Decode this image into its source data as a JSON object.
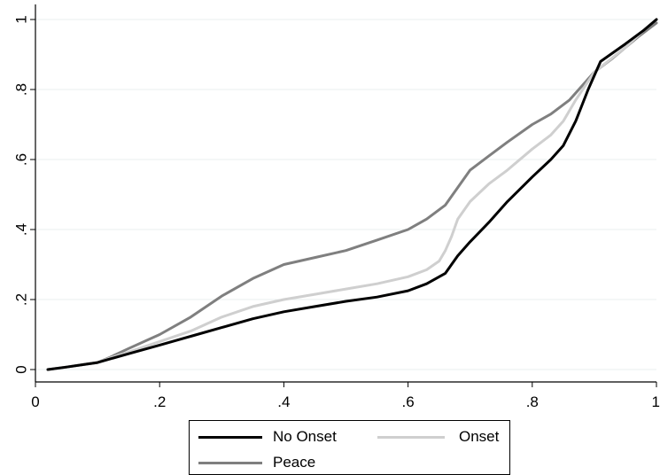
{
  "chart_data": {
    "type": "line",
    "title": "",
    "xlabel": "",
    "ylabel": "",
    "xlim": [
      0,
      1
    ],
    "ylim": [
      0,
      1
    ],
    "grid": true,
    "legend_position": "bottom",
    "x_ticks": [
      {
        "value": 0,
        "label": "0"
      },
      {
        "value": 0.2,
        "label": ".2"
      },
      {
        "value": 0.4,
        "label": ".4"
      },
      {
        "value": 0.6,
        "label": ".6"
      },
      {
        "value": 0.8,
        "label": ".8"
      },
      {
        "value": 1,
        "label": "1"
      }
    ],
    "y_ticks": [
      {
        "value": 0,
        "label": "0"
      },
      {
        "value": 0.2,
        "label": ".2"
      },
      {
        "value": 0.4,
        "label": ".4"
      },
      {
        "value": 0.6,
        "label": ".6"
      },
      {
        "value": 0.8,
        "label": ".8"
      },
      {
        "value": 1,
        "label": "1"
      }
    ],
    "series": [
      {
        "name": "No Onset",
        "color": "#000000",
        "x": [
          0.02,
          0.05,
          0.08,
          0.1,
          0.12,
          0.15,
          0.2,
          0.25,
          0.3,
          0.35,
          0.4,
          0.45,
          0.5,
          0.55,
          0.6,
          0.63,
          0.66,
          0.68,
          0.7,
          0.73,
          0.76,
          0.8,
          0.83,
          0.85,
          0.87,
          0.89,
          0.91,
          0.95,
          0.98,
          1.0
        ],
        "y": [
          0.0,
          0.007,
          0.015,
          0.02,
          0.03,
          0.045,
          0.07,
          0.095,
          0.12,
          0.145,
          0.165,
          0.18,
          0.195,
          0.207,
          0.225,
          0.245,
          0.275,
          0.325,
          0.365,
          0.42,
          0.48,
          0.55,
          0.6,
          0.64,
          0.71,
          0.8,
          0.88,
          0.93,
          0.97,
          1.0
        ]
      },
      {
        "name": "Onset",
        "color": "#cfcfcf",
        "x": [
          0.02,
          0.05,
          0.08,
          0.1,
          0.12,
          0.15,
          0.2,
          0.25,
          0.3,
          0.35,
          0.4,
          0.45,
          0.5,
          0.55,
          0.6,
          0.63,
          0.65,
          0.66,
          0.67,
          0.68,
          0.7,
          0.73,
          0.76,
          0.8,
          0.83,
          0.85,
          0.87,
          0.9,
          0.95,
          0.98,
          1.0
        ],
        "y": [
          0.0,
          0.007,
          0.015,
          0.02,
          0.033,
          0.05,
          0.08,
          0.11,
          0.15,
          0.18,
          0.2,
          0.215,
          0.23,
          0.245,
          0.265,
          0.285,
          0.31,
          0.34,
          0.38,
          0.43,
          0.48,
          0.53,
          0.57,
          0.63,
          0.67,
          0.71,
          0.77,
          0.85,
          0.92,
          0.97,
          1.0
        ]
      },
      {
        "name": "Peace",
        "color": "#7f7f7f",
        "x": [
          0.02,
          0.05,
          0.08,
          0.1,
          0.12,
          0.15,
          0.2,
          0.25,
          0.3,
          0.35,
          0.4,
          0.45,
          0.5,
          0.55,
          0.6,
          0.63,
          0.66,
          0.68,
          0.7,
          0.73,
          0.76,
          0.8,
          0.83,
          0.86,
          0.88,
          0.9,
          0.93,
          0.97,
          1.0
        ],
        "y": [
          0.0,
          0.007,
          0.015,
          0.02,
          0.035,
          0.06,
          0.1,
          0.15,
          0.21,
          0.26,
          0.3,
          0.32,
          0.34,
          0.37,
          0.4,
          0.43,
          0.47,
          0.52,
          0.57,
          0.61,
          0.65,
          0.7,
          0.73,
          0.77,
          0.81,
          0.85,
          0.89,
          0.95,
          0.99
        ]
      }
    ]
  }
}
